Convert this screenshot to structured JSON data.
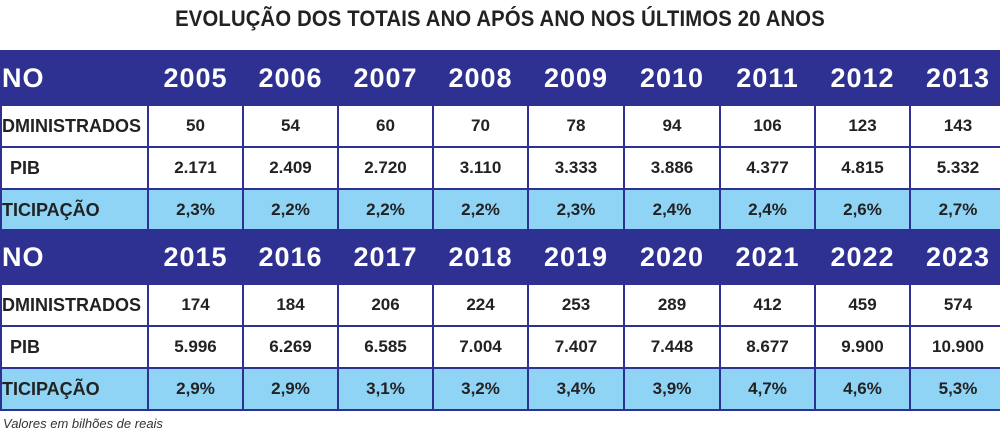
{
  "title": "EVOLUÇÃO DOS TOTAIS ANO APÓS ANO NOS ÚLTIMOS 20 ANOS",
  "row_labels": {
    "year": "NO",
    "administrados": "DMINISTRADOS",
    "pib": "PIB",
    "participacao": "TICIPAÇÃO"
  },
  "colors": {
    "header": "#2e3192",
    "participacao_row": "#8fd3f5"
  },
  "tables": [
    {
      "years": [
        "2005",
        "2006",
        "2007",
        "2008",
        "2009",
        "2010",
        "2011",
        "2012",
        "2013"
      ],
      "administrados": [
        "50",
        "54",
        "60",
        "70",
        "78",
        "94",
        "106",
        "123",
        "143"
      ],
      "pib": [
        "2.171",
        "2.409",
        "2.720",
        "3.110",
        "3.333",
        "3.886",
        "4.377",
        "4.815",
        "5.332"
      ],
      "participacao": [
        "2,3%",
        "2,2%",
        "2,2%",
        "2,2%",
        "2,3%",
        "2,4%",
        "2,4%",
        "2,6%",
        "2,7%"
      ]
    },
    {
      "years": [
        "2015",
        "2016",
        "2017",
        "2018",
        "2019",
        "2020",
        "2021",
        "2022",
        "2023"
      ],
      "administrados": [
        "174",
        "184",
        "206",
        "224",
        "253",
        "289",
        "412",
        "459",
        "574"
      ],
      "pib": [
        "5.996",
        "6.269",
        "6.585",
        "7.004",
        "7.407",
        "7.448",
        "8.677",
        "9.900",
        "10.900"
      ],
      "participacao": [
        "2,9%",
        "2,9%",
        "3,1%",
        "3,2%",
        "3,4%",
        "3,9%",
        "4,7%",
        "4,6%",
        "5,3%"
      ]
    }
  ],
  "footnote": "Valores em bilhões de reais"
}
